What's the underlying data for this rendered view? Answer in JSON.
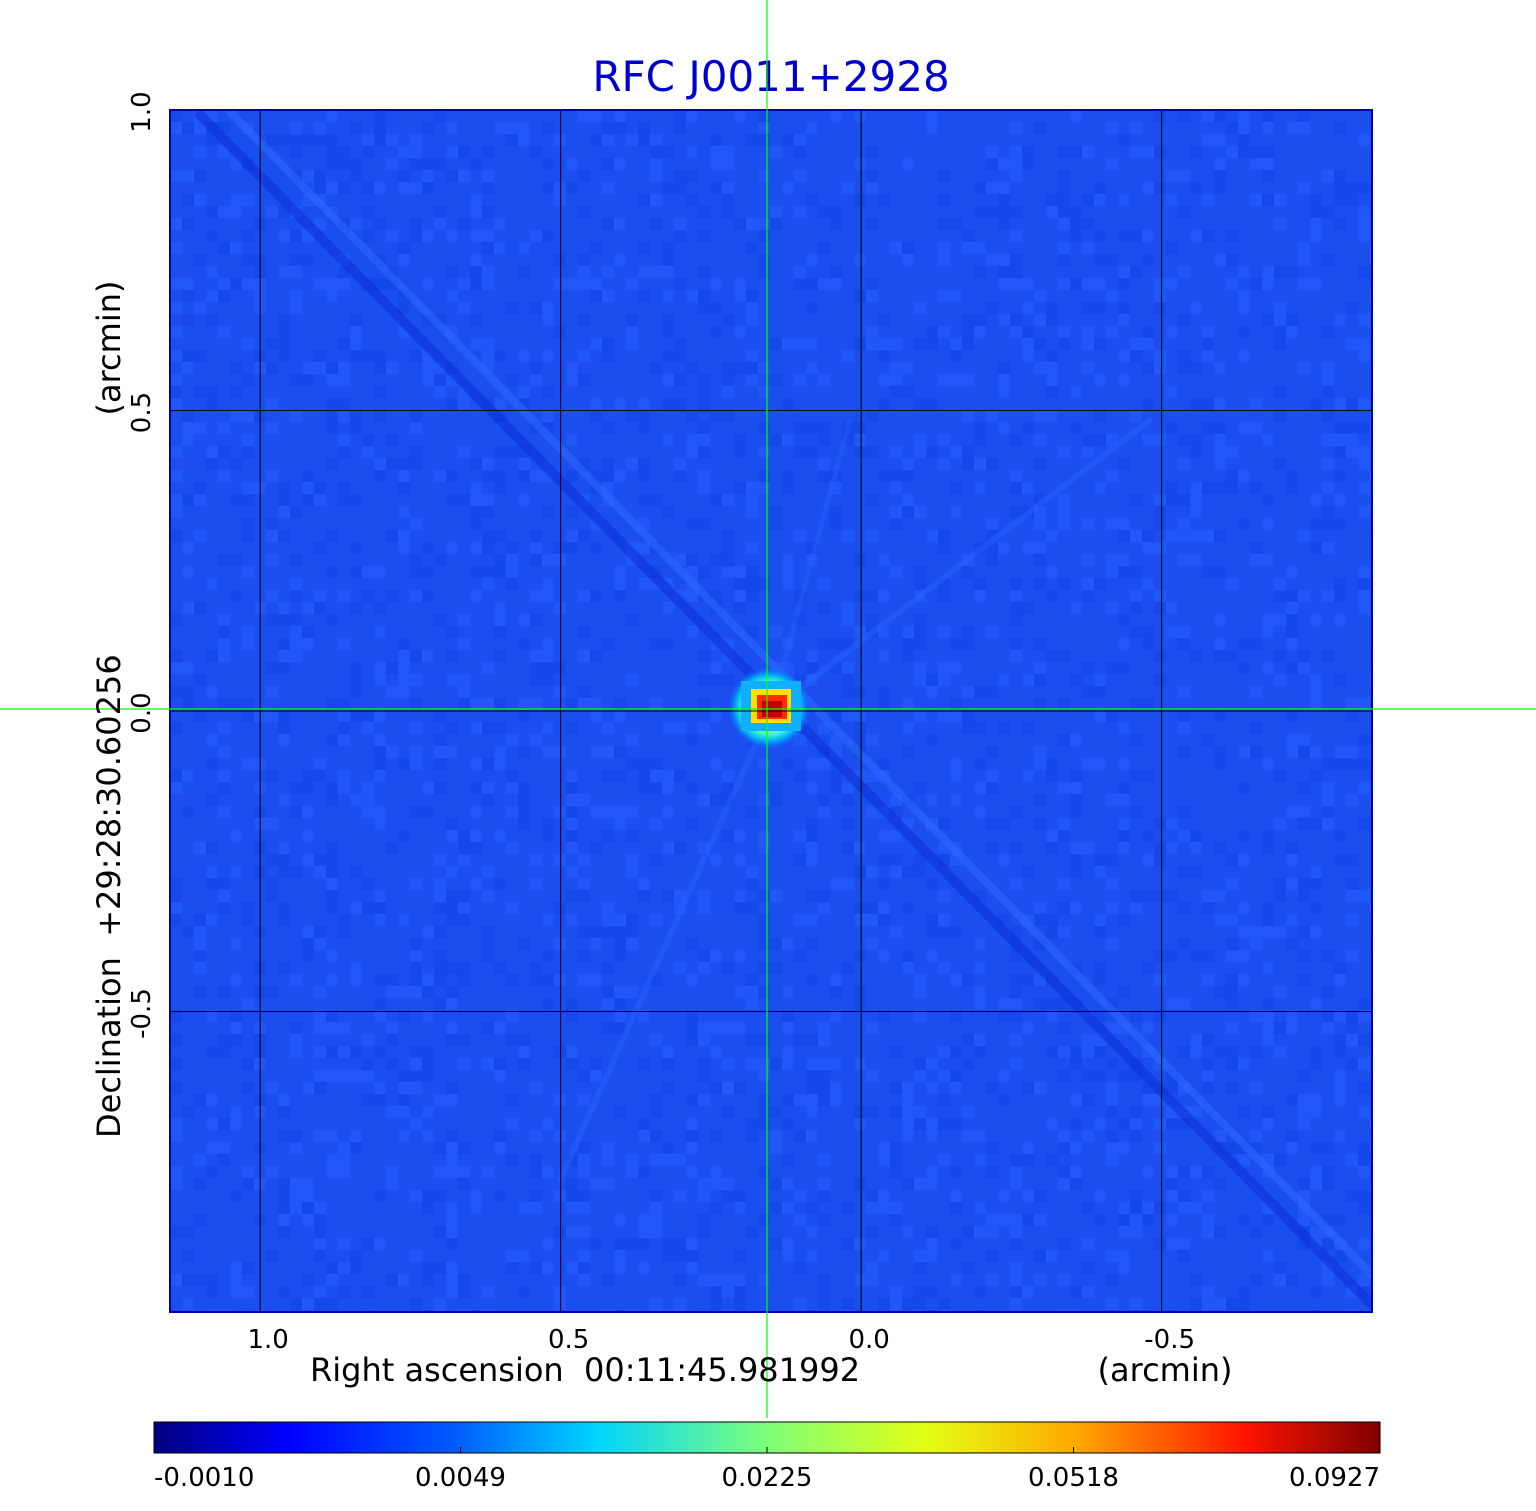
{
  "chart_data": {
    "type": "heatmap",
    "title": "RFC J0011+2928",
    "title_color": "#0000cc",
    "xlabel": "Right ascension  00:11:45.981992",
    "xunit": "(arcmin)",
    "ylabel": "Declination  +29:28:30.60256",
    "yunit": "(arcmin)",
    "x_ticks": [
      {
        "value": 1.0,
        "label": "1.0"
      },
      {
        "value": 0.5,
        "label": "0.5"
      },
      {
        "value": 0.0,
        "label": "0.0"
      },
      {
        "value": -0.5,
        "label": "-0.5"
      }
    ],
    "y_ticks": [
      {
        "value": 1.0,
        "label": "1.0"
      },
      {
        "value": 0.5,
        "label": "0.5"
      },
      {
        "value": 0.0,
        "label": "0.0"
      },
      {
        "value": -0.5,
        "label": "-0.5"
      }
    ],
    "xlim": [
      1.15,
      -0.85
    ],
    "ylim": [
      -1.0,
      1.0
    ],
    "x_reversed": true,
    "grid": true,
    "grid_color": "#000000",
    "crosshair_color": "#00ff00",
    "crosshair": {
      "x": 0.15,
      "y": 0.0
    },
    "peak": {
      "x": 0.15,
      "y": 0.0,
      "value": 0.0927
    },
    "background_level": 0.0,
    "colormap": "jet",
    "colorbar": {
      "ticks": [
        "-0.0010",
        "0.0049",
        "0.0225",
        "0.0518",
        "0.0927"
      ],
      "values": [
        -0.001,
        0.0049,
        0.0225,
        0.0518,
        0.0927
      ]
    }
  }
}
